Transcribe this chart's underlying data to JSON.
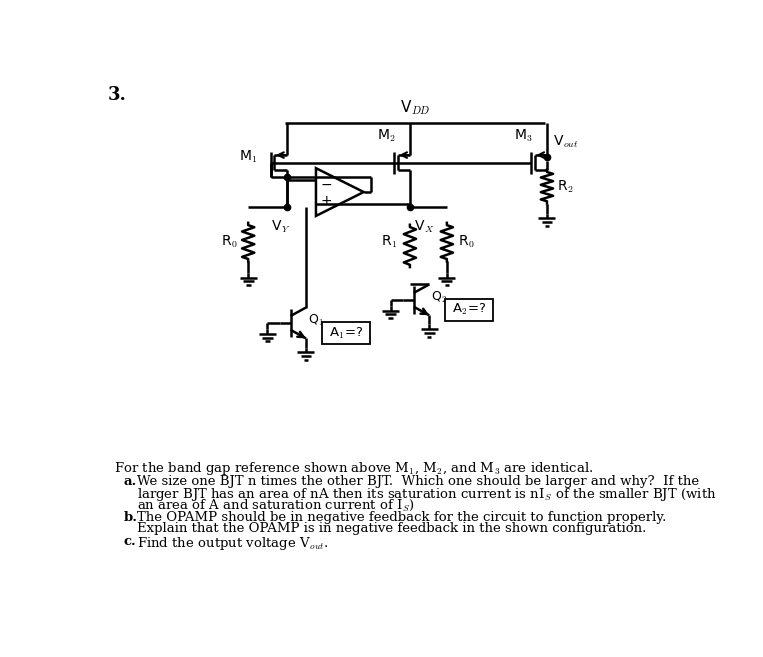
{
  "title_num": "3.",
  "vdd_label": "V$_{DD}$",
  "m1_label": "M$_1$",
  "m2_label": "M$_2$",
  "m3_label": "M$_3$",
  "vout_label": "V$_{out}$",
  "vy_label": "V$_Y$",
  "vx_label": "V$_X$",
  "r0_label": "R$_0$",
  "r1_label": "R$_1$",
  "r2_label": "R$_2$",
  "q1_label": "Q$_1$",
  "q2_label": "Q$_2$",
  "a1_label": "A$_1$=?",
  "a2_label": "A$_2$=?",
  "text_line1": "For the band gap reference shown above M$_1$, M$_2$, and M$_3$ are identical.",
  "text_a1": "We size one BJT n times the other BJT.  Which one should be larger and why?  If the",
  "text_a2": "larger BJT has an area of nA then its saturation current is nI$_S$ of the smaller BJT (with",
  "text_a3": "an area of A and saturation current of I$_S$)",
  "text_b1": "The OPAMP should be in negative feedback for the circuit to function properly.",
  "text_b2": "Explain that the OPAMP is in negative feedback in the shown configuration.",
  "text_c1": "Find the output voltage V$_{out}$.",
  "bg_color": "#ffffff"
}
